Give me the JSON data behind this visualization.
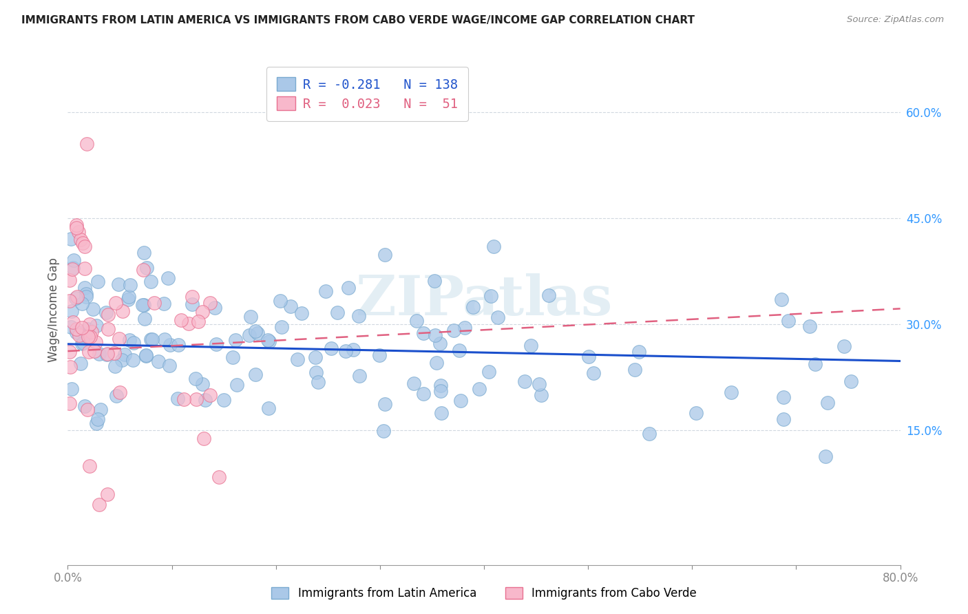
{
  "title": "IMMIGRANTS FROM LATIN AMERICA VS IMMIGRANTS FROM CABO VERDE WAGE/INCOME GAP CORRELATION CHART",
  "source": "Source: ZipAtlas.com",
  "ylabel": "Wage/Income Gap",
  "right_yticks": [
    0.15,
    0.3,
    0.45,
    0.6
  ],
  "right_yticklabels": [
    "15.0%",
    "30.0%",
    "45.0%",
    "60.0%"
  ],
  "blue_color": "#aac8e8",
  "blue_edge": "#7aaad0",
  "pink_color": "#f8b8cb",
  "pink_edge": "#e87090",
  "blue_line_color": "#1a4fcc",
  "pink_line_color": "#e06080",
  "watermark": "ZIPatlas",
  "xmin": 0.0,
  "xmax": 0.8,
  "ymin": -0.04,
  "ymax": 0.68,
  "blue_trend_x0": 0.0,
  "blue_trend_y0": 0.272,
  "blue_trend_x1": 0.8,
  "blue_trend_y1": 0.248,
  "pink_trend_x0": 0.0,
  "pink_trend_y0": 0.262,
  "pink_trend_x1": 0.8,
  "pink_trend_y1": 0.322,
  "seed_blue": 42,
  "seed_pink": 17,
  "N_blue": 138,
  "N_pink": 51
}
